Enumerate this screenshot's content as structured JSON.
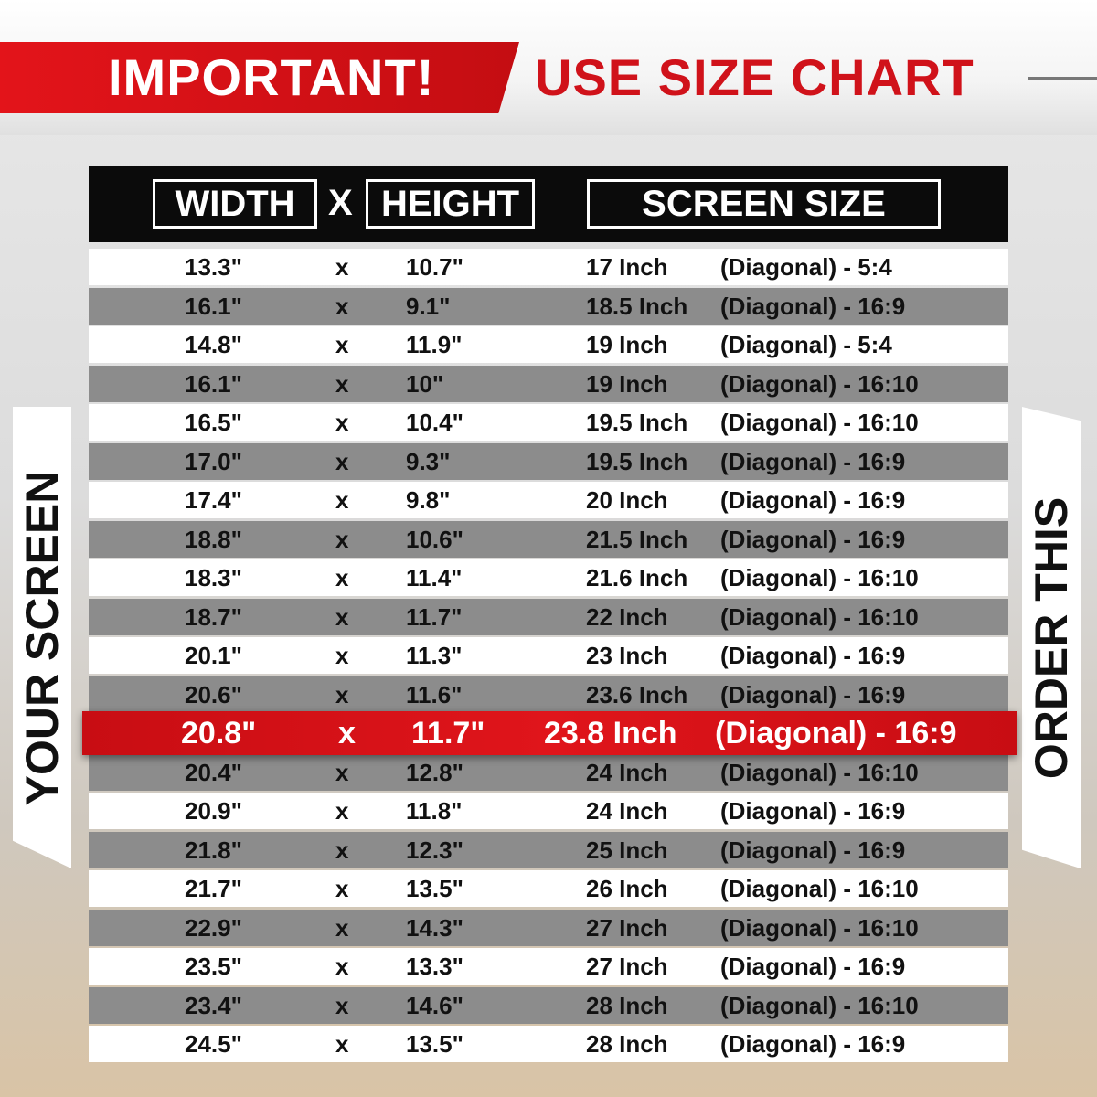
{
  "banner": {
    "important": "IMPORTANT!",
    "title": "USE SIZE CHART"
  },
  "header": {
    "width": "WIDTH",
    "x": "X",
    "height": "HEIGHT",
    "screen_size": "SCREEN SIZE"
  },
  "side": {
    "left": "YOUR SCREEN",
    "right": "ORDER THIS"
  },
  "colors": {
    "accent_red": "#d0121a",
    "header_bg": "#0b0b0b",
    "row_gray": "#8c8c8c"
  },
  "rows": [
    {
      "w": "13.3\"",
      "x": "x",
      "h": "10.7\"",
      "size": "17 Inch",
      "diag": "(Diagonal) - 5:4"
    },
    {
      "w": "16.1\"",
      "x": "x",
      "h": "9.1\"",
      "size": "18.5 Inch",
      "diag": "(Diagonal) - 16:9"
    },
    {
      "w": "14.8\"",
      "x": "x",
      "h": "11.9\"",
      "size": "19 Inch",
      "diag": "(Diagonal) - 5:4"
    },
    {
      "w": "16.1\"",
      "x": "x",
      "h": "10\"",
      "size": "19 Inch",
      "diag": "(Diagonal) - 16:10"
    },
    {
      "w": "16.5\"",
      "x": "x",
      "h": "10.4\"",
      "size": "19.5 Inch",
      "diag": "(Diagonal) - 16:10"
    },
    {
      "w": "17.0\"",
      "x": "x",
      "h": "9.3\"",
      "size": "19.5 Inch",
      "diag": "(Diagonal) - 16:9"
    },
    {
      "w": "17.4\"",
      "x": "x",
      "h": "9.8\"",
      "size": "20 Inch",
      "diag": "(Diagonal) - 16:9"
    },
    {
      "w": "18.8\"",
      "x": "x",
      "h": "10.6\"",
      "size": "21.5 Inch",
      "diag": "(Diagonal) - 16:9"
    },
    {
      "w": "18.3\"",
      "x": "x",
      "h": "11.4\"",
      "size": "21.6 Inch",
      "diag": "(Diagonal) - 16:10"
    },
    {
      "w": "18.7\"",
      "x": "x",
      "h": "11.7\"",
      "size": "22 Inch",
      "diag": "(Diagonal) - 16:10"
    },
    {
      "w": "20.1\"",
      "x": "x",
      "h": "11.3\"",
      "size": "23 Inch",
      "diag": "(Diagonal) - 16:9"
    },
    {
      "w": "20.6\"",
      "x": "x",
      "h": "11.6\"",
      "size": "23.6 Inch",
      "diag": "(Diagonal) - 16:9"
    },
    {
      "w": "20.8\"",
      "x": "x",
      "h": "11.7\"",
      "size": "23.8 Inch",
      "diag": "(Diagonal) - 16:9",
      "highlight": true
    },
    {
      "w": "20.4\"",
      "x": "x",
      "h": "12.8\"",
      "size": "24 Inch",
      "diag": "(Diagonal) - 16:10"
    },
    {
      "w": "20.9\"",
      "x": "x",
      "h": "11.8\"",
      "size": "24 Inch",
      "diag": "(Diagonal) - 16:9"
    },
    {
      "w": "21.8\"",
      "x": "x",
      "h": "12.3\"",
      "size": "25 Inch",
      "diag": "(Diagonal) - 16:9"
    },
    {
      "w": "21.7\"",
      "x": "x",
      "h": "13.5\"",
      "size": "26 Inch",
      "diag": "(Diagonal) - 16:10"
    },
    {
      "w": "22.9\"",
      "x": "x",
      "h": "14.3\"",
      "size": "27 Inch",
      "diag": "(Diagonal) - 16:10"
    },
    {
      "w": "23.5\"",
      "x": "x",
      "h": "13.3\"",
      "size": "27 Inch",
      "diag": "(Diagonal) - 16:9"
    },
    {
      "w": "23.4\"",
      "x": "x",
      "h": "14.6\"",
      "size": "28 Inch",
      "diag": "(Diagonal) - 16:10"
    },
    {
      "w": "24.5\"",
      "x": "x",
      "h": "13.5\"",
      "size": "28 Inch",
      "diag": "(Diagonal) - 16:9"
    }
  ]
}
